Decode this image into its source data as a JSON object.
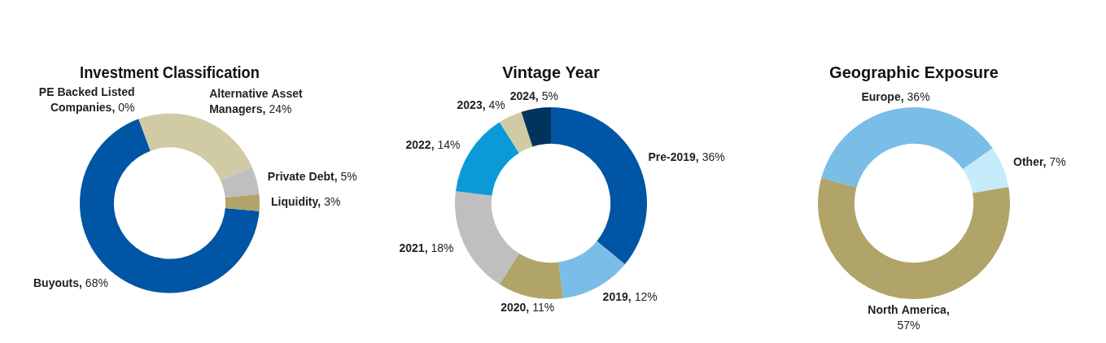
{
  "chart_data": [
    {
      "type": "donut",
      "title": "Investment Classification",
      "categories": [
        "Buyouts",
        "PE Backed Listed Companies",
        "Alternative Asset Managers",
        "Private Debt",
        "Liquidity"
      ],
      "values": [
        68,
        0,
        24,
        5,
        3
      ],
      "colors": [
        "#0055a4",
        "#8fa0b8",
        "#d0cba4",
        "#bfbfbf",
        "#b0a468"
      ],
      "value_labels": [
        ", 68%",
        ", 0%",
        ", 24%",
        ", 5%",
        ", 3%"
      ],
      "legend": false
    },
    {
      "type": "donut",
      "title": "Vintage Year",
      "categories": [
        "Pre-2019",
        "2019",
        "2020",
        "2021",
        "2022",
        "2023",
        "2024"
      ],
      "values": [
        36,
        12,
        11,
        18,
        14,
        4,
        5
      ],
      "colors": [
        "#0055a4",
        "#7abde6",
        "#b0a468",
        "#bfbfbf",
        "#0a9ad8",
        "#d0cba4",
        "#00335e"
      ],
      "value_labels": [
        ", 36%",
        ", 12%",
        ", 11%",
        ", 18%",
        ", 14%",
        ", 4%",
        ", 5%"
      ],
      "legend": false
    },
    {
      "type": "donut",
      "title": "Geographic Exposure",
      "categories": [
        "Other",
        "North America",
        "Europe"
      ],
      "values": [
        7,
        57,
        36
      ],
      "colors": [
        "#c6ebfa",
        "#b0a468",
        "#7abde6"
      ],
      "value_labels": [
        ", 7%",
        ", 57%",
        ", 36%"
      ],
      "legend": false
    }
  ]
}
